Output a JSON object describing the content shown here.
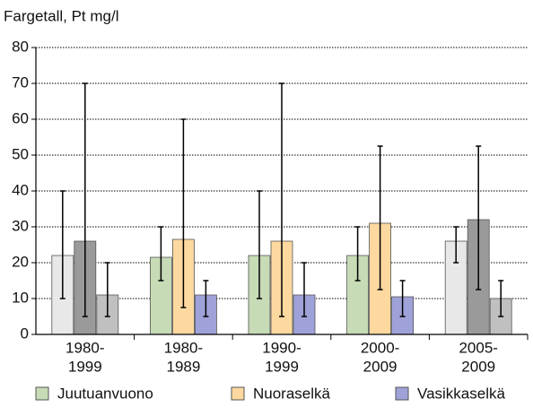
{
  "chart_data": {
    "type": "bar",
    "y_label": "Fargetall, Pt mg/l",
    "categories": [
      [
        "1980-",
        "1999"
      ],
      [
        "1980-",
        "1989"
      ],
      [
        "1990-",
        "1999"
      ],
      [
        "2000-",
        "2009"
      ],
      [
        "2005-",
        "2009"
      ]
    ],
    "series": [
      {
        "name": "Juutuanvuono",
        "color": "#c6dbb6",
        "colors": [
          "#e8e8e8",
          "#c6dbb6",
          "#c6dbb6",
          "#c6dbb6",
          "#e8e8e8"
        ],
        "values": [
          22,
          21.5,
          22,
          22,
          26
        ],
        "lows": [
          10,
          15,
          10,
          15,
          20
        ],
        "highs": [
          40,
          30,
          40,
          30,
          30
        ]
      },
      {
        "name": "Nuoraselkä",
        "color": "#fdd9a0",
        "colors": [
          "#9a9a9a",
          "#fdd9a0",
          "#fdd9a0",
          "#fdd9a0",
          "#9a9a9a"
        ],
        "values": [
          26,
          26.5,
          26,
          31,
          32
        ],
        "lows": [
          5,
          7.5,
          5,
          12.5,
          12.5
        ],
        "highs": [
          70,
          60,
          70,
          52.5,
          52.5
        ]
      },
      {
        "name": "Vasikkaselkä",
        "color": "#9fa2d8",
        "colors": [
          "#c0c0c0",
          "#9fa2d8",
          "#9fa2d8",
          "#9fa2d8",
          "#c0c0c0"
        ],
        "values": [
          11,
          11,
          11,
          10.5,
          10
        ],
        "lows": [
          5,
          5,
          5,
          5,
          5
        ],
        "highs": [
          20,
          15,
          20,
          15,
          15
        ]
      }
    ],
    "ylim": [
      0,
      80
    ],
    "yticks": [
      0,
      10,
      20,
      30,
      40,
      50,
      60,
      70,
      80
    ],
    "grid": true
  }
}
